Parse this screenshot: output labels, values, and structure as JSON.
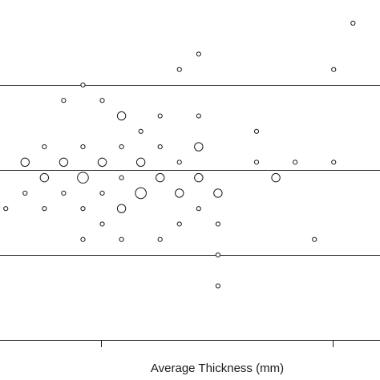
{
  "chart_data": {
    "type": "scatter",
    "title": "",
    "xlabel": "Average Thickness (mm)",
    "ylabel": "",
    "xlim": [
      0,
      19.7
    ],
    "ylim": [
      -22,
      22
    ],
    "grid": false,
    "hlines": [
      -11,
      0,
      11
    ],
    "xticks": [
      5.25,
      17.25
    ],
    "points": [
      {
        "x": 0.3,
        "y": -5,
        "size": 1
      },
      {
        "x": 1.3,
        "y": 1,
        "size": 2
      },
      {
        "x": 1.3,
        "y": -3,
        "size": 1
      },
      {
        "x": 2.3,
        "y": 3,
        "size": 1
      },
      {
        "x": 2.3,
        "y": -1,
        "size": 2
      },
      {
        "x": 2.3,
        "y": -5,
        "size": 1
      },
      {
        "x": 3.3,
        "y": 9,
        "size": 1
      },
      {
        "x": 3.3,
        "y": 1,
        "size": 2
      },
      {
        "x": 3.3,
        "y": -3,
        "size": 1
      },
      {
        "x": 4.3,
        "y": 11,
        "size": 1
      },
      {
        "x": 4.3,
        "y": 3,
        "size": 1
      },
      {
        "x": 4.3,
        "y": -1,
        "size": 3
      },
      {
        "x": 4.3,
        "y": -5,
        "size": 1
      },
      {
        "x": 4.3,
        "y": -9,
        "size": 1
      },
      {
        "x": 5.3,
        "y": 9,
        "size": 1
      },
      {
        "x": 5.3,
        "y": 1,
        "size": 2
      },
      {
        "x": 5.3,
        "y": -3,
        "size": 1
      },
      {
        "x": 5.3,
        "y": -7,
        "size": 1
      },
      {
        "x": 6.3,
        "y": 7,
        "size": 2
      },
      {
        "x": 6.3,
        "y": 3,
        "size": 1
      },
      {
        "x": 6.3,
        "y": -1,
        "size": 1
      },
      {
        "x": 6.3,
        "y": -5,
        "size": 2
      },
      {
        "x": 6.3,
        "y": -9,
        "size": 1
      },
      {
        "x": 7.3,
        "y": 5,
        "size": 1
      },
      {
        "x": 7.3,
        "y": 1,
        "size": 2
      },
      {
        "x": 7.3,
        "y": -3,
        "size": 3
      },
      {
        "x": 8.3,
        "y": 7,
        "size": 1
      },
      {
        "x": 8.3,
        "y": 3,
        "size": 1
      },
      {
        "x": 8.3,
        "y": -1,
        "size": 2
      },
      {
        "x": 8.3,
        "y": -9,
        "size": 1
      },
      {
        "x": 9.3,
        "y": 13,
        "size": 1
      },
      {
        "x": 9.3,
        "y": 1,
        "size": 1
      },
      {
        "x": 9.3,
        "y": -3,
        "size": 2
      },
      {
        "x": 9.3,
        "y": -7,
        "size": 1
      },
      {
        "x": 10.3,
        "y": 15,
        "size": 1
      },
      {
        "x": 10.3,
        "y": 7,
        "size": 1
      },
      {
        "x": 10.3,
        "y": 3,
        "size": 2
      },
      {
        "x": 10.3,
        "y": -1,
        "size": 2
      },
      {
        "x": 10.3,
        "y": -5,
        "size": 1
      },
      {
        "x": 11.3,
        "y": -3,
        "size": 2
      },
      {
        "x": 11.3,
        "y": -7,
        "size": 1
      },
      {
        "x": 11.3,
        "y": -11,
        "size": 1
      },
      {
        "x": 11.3,
        "y": -15,
        "size": 1
      },
      {
        "x": 13.3,
        "y": 5,
        "size": 1
      },
      {
        "x": 13.3,
        "y": 1,
        "size": 1
      },
      {
        "x": 14.3,
        "y": -1,
        "size": 2
      },
      {
        "x": 15.3,
        "y": 1,
        "size": 1
      },
      {
        "x": 16.3,
        "y": -9,
        "size": 1
      },
      {
        "x": 17.3,
        "y": 13,
        "size": 1
      },
      {
        "x": 17.3,
        "y": 1,
        "size": 1
      },
      {
        "x": 18.3,
        "y": 19,
        "size": 1
      }
    ]
  }
}
